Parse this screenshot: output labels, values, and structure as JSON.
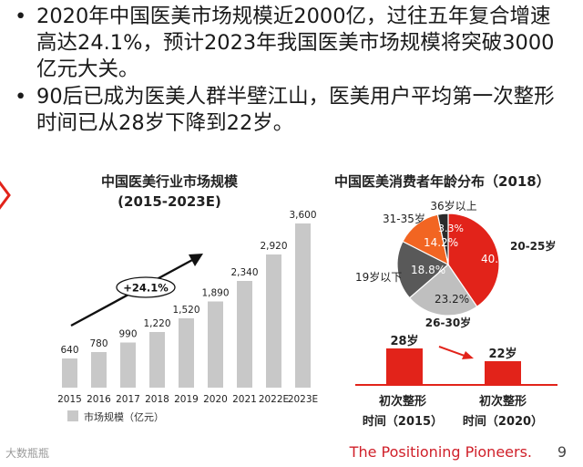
{
  "bullets": [
    {
      "text": "2020年中国医美市场规模近2000亿，过往五年复合增速高达24.1%，预计2023年我国医美市场规模将突破3000亿元大关。"
    },
    {
      "text": "90后已成为医美人群半壁江山，医美用户平均第一次整形时间已从28岁下降到22岁。"
    }
  ],
  "bullet_symbol": "•",
  "chart_data": [
    {
      "type": "bar",
      "title": "中国医美行业市场规模",
      "subtitle": "(2015-2023E)",
      "categories": [
        "2015",
        "2016",
        "2017",
        "2018",
        "2019",
        "2020",
        "2021",
        "2022E",
        "2023E"
      ],
      "values": [
        640,
        780,
        990,
        1220,
        1520,
        1890,
        2340,
        2920,
        3600
      ],
      "value_labels": [
        "640",
        "780",
        "990",
        "1,220",
        "1,520",
        "1,890",
        "2,340",
        "2,920",
        "3,600"
      ],
      "legend": "市场规模（亿元）",
      "annotation": "+24.1%",
      "ylim": [
        0,
        3800
      ],
      "color": "#c8c8c8",
      "legend_position": "bottom-left"
    },
    {
      "type": "pie",
      "title": "中国医美消费者年龄分布（2018）",
      "slices": [
        {
          "label": "20-25岁",
          "value": 40.4,
          "value_label": "40.4%",
          "color": "#e2231a"
        },
        {
          "label": "26-30岁",
          "value": 23.2,
          "value_label": "23.2%",
          "color": "#bfbfbf"
        },
        {
          "label": "19岁以下",
          "value": 18.8,
          "value_label": "18.8%",
          "color": "#595959"
        },
        {
          "label": "31-35岁",
          "value": 14.2,
          "value_label": "14.2%",
          "color": "#f26522"
        },
        {
          "label": "36岁以上",
          "value": 3.3,
          "value_label": "3.3%",
          "color": "#2b2b2b"
        }
      ]
    },
    {
      "type": "bar",
      "categories": [
        "初次整形时间（2015）",
        "初次整形时间（2020）"
      ],
      "category_lines": [
        [
          "初次整形",
          "时间（2015）"
        ],
        [
          "初次整形",
          "时间（2020）"
        ]
      ],
      "values": [
        28,
        22
      ],
      "value_labels": [
        "28岁",
        "22岁"
      ],
      "color": "#e2231a"
    }
  ],
  "footer": {
    "logo_text": "大数瓶瓶",
    "tagline": "The Positioning Pioneers.",
    "page_number": "9"
  },
  "colors": {
    "accent": "#d0202a",
    "bar_gray": "#c8c8c8"
  }
}
